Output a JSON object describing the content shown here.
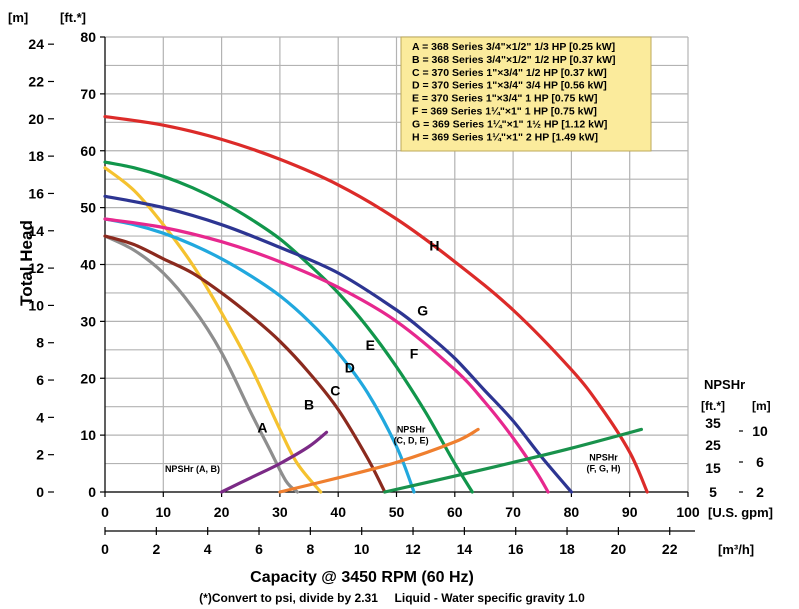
{
  "chart_data": {
    "type": "line",
    "ylabel": "Total Head",
    "xlabel": "Capacity @ 3450 RPM (60 Hz)",
    "footnote": "(*)Convert to psi, divide by 2.31     Liquid - Water specific gravity 1.0",
    "left_axis": {
      "unit_m": "[m]",
      "unit_ft": "[ft.*]",
      "m_ticks": [
        "0",
        "2",
        "4",
        "6",
        "8",
        "10",
        "12",
        "14",
        "16",
        "18",
        "20",
        "22",
        "24"
      ],
      "ft_ticks": [
        "0",
        "10",
        "20",
        "30",
        "40",
        "50",
        "60",
        "70",
        "80"
      ],
      "ylim_ft": [
        0,
        80
      ]
    },
    "x_axis": {
      "gpm_unit": "[U.S. gpm]",
      "gpm_ticks": [
        "0",
        "10",
        "20",
        "30",
        "40",
        "50",
        "60",
        "70",
        "80",
        "90",
        "100"
      ],
      "xlim_gpm": [
        0,
        100
      ],
      "m3h_unit": "[m³/h]",
      "m3h_ticks": [
        "0",
        "2",
        "4",
        "6",
        "8",
        "10",
        "12",
        "14",
        "16",
        "18",
        "20",
        "22"
      ]
    },
    "npshr_axis": {
      "title": "NPSHr",
      "unit_ft": "[ft.*]",
      "unit_m": "[m]",
      "ft_ticks": [
        "5",
        "15",
        "25",
        "35"
      ],
      "m_ticks": [
        "2",
        "6",
        "10"
      ]
    },
    "legend": [
      "A = 368 Series 3/4\"×1/2\" 1/3 HP [0.25 kW]",
      "B = 368 Series 3/4\"×1/2\" 1/2 HP [0.37 kW]",
      "C = 370 Series 1\"×3/4\" 1/2 HP [0.37 kW]",
      "D = 370 Series 1\"×3/4\" 3/4 HP [0.56 kW]",
      "E = 370 Series 1\"×3/4\" 1 HP [0.75 kW]",
      "F = 369 Series 1¼\"×1\" 1 HP [0.75 kW]",
      "G = 369 Series 1¼\"×1\" 1½ HP [1.12 kW]",
      "H = 369 Series 1¼\"×1\" 2 HP [1.49 kW]"
    ],
    "legend_bg": "#fbeb9c",
    "series": [
      {
        "name": "A",
        "color": "#8e8e8e",
        "x": [
          0,
          5,
          10,
          15,
          20,
          25,
          28,
          31,
          33
        ],
        "y": [
          45,
          42.5,
          38.5,
          32.5,
          24.5,
          14,
          8,
          2,
          0
        ]
      },
      {
        "name": "B",
        "color": "#f5c22f",
        "x": [
          0,
          5,
          10,
          15,
          20,
          25,
          30,
          33,
          37
        ],
        "y": [
          57,
          53,
          47,
          40,
          31.5,
          22,
          11,
          5,
          0
        ]
      },
      {
        "name": "C",
        "color": "#8b2a1e",
        "x": [
          0,
          5,
          10,
          15,
          20,
          25,
          30,
          35,
          40,
          45,
          48
        ],
        "y": [
          45,
          43.5,
          41,
          38.5,
          35,
          31,
          26.5,
          21,
          14.5,
          6,
          0
        ]
      },
      {
        "name": "D",
        "color": "#21a8de",
        "x": [
          0,
          5,
          10,
          15,
          20,
          25,
          30,
          35,
          40,
          45,
          50,
          53
        ],
        "y": [
          48,
          47,
          45.5,
          43.5,
          41,
          38,
          34.5,
          30,
          24.5,
          17.5,
          8,
          0
        ]
      },
      {
        "name": "E",
        "color": "#11964b",
        "x": [
          0,
          5,
          10,
          15,
          20,
          25,
          30,
          35,
          40,
          45,
          50,
          55,
          60,
          63
        ],
        "y": [
          58,
          57,
          55.5,
          53.5,
          51,
          48,
          44.5,
          40,
          35,
          29,
          22,
          14,
          5,
          0
        ]
      },
      {
        "name": "F",
        "color": "#e7288e",
        "x": [
          0,
          10,
          20,
          30,
          40,
          50,
          60,
          65,
          70,
          74,
          76
        ],
        "y": [
          48,
          46.5,
          44,
          40.5,
          36,
          30,
          21.5,
          16,
          9.5,
          3.5,
          0
        ]
      },
      {
        "name": "G",
        "color": "#2d3592",
        "x": [
          0,
          10,
          20,
          30,
          40,
          50,
          55,
          60,
          65,
          70,
          75,
          80
        ],
        "y": [
          52,
          50,
          47,
          43,
          38.5,
          32,
          28,
          23.5,
          18,
          12.5,
          6,
          0
        ]
      },
      {
        "name": "H",
        "color": "#dc2b29",
        "x": [
          0,
          10,
          20,
          30,
          40,
          50,
          60,
          70,
          80,
          85,
          90,
          93
        ],
        "y": [
          66,
          64.5,
          62,
          58.5,
          54,
          48,
          40.5,
          32,
          21.5,
          15,
          7,
          0
        ]
      },
      {
        "name": "NPSHr (A, B)",
        "color": "#7b2a86",
        "x": [
          20,
          25,
          30,
          35,
          38
        ],
        "y": [
          0,
          2.5,
          5,
          8,
          10.5
        ]
      },
      {
        "name": "NPSHr (C, D, E)",
        "color": "#ef7f2f",
        "x": [
          30,
          40,
          50,
          60,
          64
        ],
        "y": [
          0,
          2.5,
          5.2,
          8.8,
          11
        ]
      },
      {
        "name": "NPSHr (F, G, H)",
        "color": "#19924c",
        "x": [
          48,
          60,
          70,
          80,
          92
        ],
        "y": [
          0,
          2.8,
          5.2,
          7.7,
          11
        ]
      }
    ],
    "curve_labels": [
      {
        "text": "A",
        "x": 27,
        "y": 10.5
      },
      {
        "text": "B",
        "x": 35,
        "y": 14.5
      },
      {
        "text": "C",
        "x": 39.5,
        "y": 17
      },
      {
        "text": "D",
        "x": 42,
        "y": 21
      },
      {
        "text": "E",
        "x": 45.5,
        "y": 25
      },
      {
        "text": "F",
        "x": 53,
        "y": 23.5
      },
      {
        "text": "G",
        "x": 54.5,
        "y": 31
      },
      {
        "text": "H",
        "x": 56.5,
        "y": 42.5
      }
    ],
    "npshr_labels": [
      {
        "lines": [
          "NPSHr (A, B)"
        ],
        "x": 15,
        "y": 3.5
      },
      {
        "lines": [
          "NPSHr",
          "(C, D, E)"
        ],
        "x": 52.5,
        "y": 10.5
      },
      {
        "lines": [
          "NPSHr",
          "(F, G, H)"
        ],
        "x": 85.5,
        "y": 5.5
      }
    ]
  }
}
